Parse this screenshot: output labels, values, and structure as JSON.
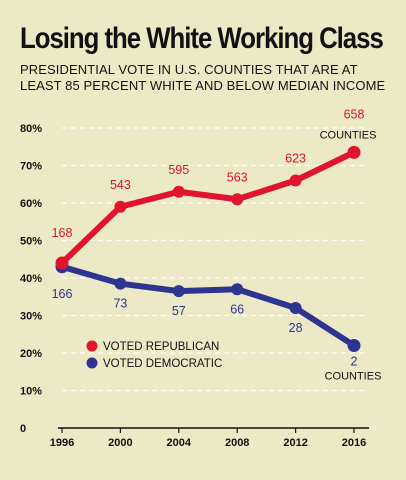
{
  "colors": {
    "background": "#ece9c6",
    "republican": "#e0142d",
    "democratic": "#2e3590",
    "gridline": "#ffffff",
    "text": "#111111"
  },
  "chart_data": {
    "type": "line",
    "title": "Losing the White Working Class",
    "subtitle": "PRESIDENTIAL VOTE IN U.S. COUNTIES THAT ARE AT LEAST 85 PERCENT WHITE AND BELOW MEDIAN INCOME",
    "x": [
      "1996",
      "2000",
      "2004",
      "2008",
      "2012",
      "2016"
    ],
    "ylim": [
      0,
      80
    ],
    "yticks": [
      0,
      10,
      20,
      30,
      40,
      50,
      60,
      70,
      80
    ],
    "ytick_labels": [
      "0",
      "10%",
      "20%",
      "30%",
      "40%",
      "50%",
      "60%",
      "70%",
      "80%"
    ],
    "grid": true,
    "legend_position": "lower-left",
    "series": [
      {
        "name": "VOTED REPUBLICAN",
        "color": "#e0142d",
        "values": [
          44,
          59,
          63,
          61,
          66,
          73.5
        ],
        "county_counts": [
          "168",
          "543",
          "595",
          "563",
          "623",
          "658"
        ],
        "end_label": "COUNTIES"
      },
      {
        "name": "VOTED DEMOCRATIC",
        "color": "#2e3590",
        "values": [
          43,
          38.5,
          36.5,
          37,
          32,
          22
        ],
        "county_counts": [
          "166",
          "73",
          "57",
          "66",
          "28",
          "2"
        ],
        "end_label": "COUNTIES"
      }
    ]
  }
}
